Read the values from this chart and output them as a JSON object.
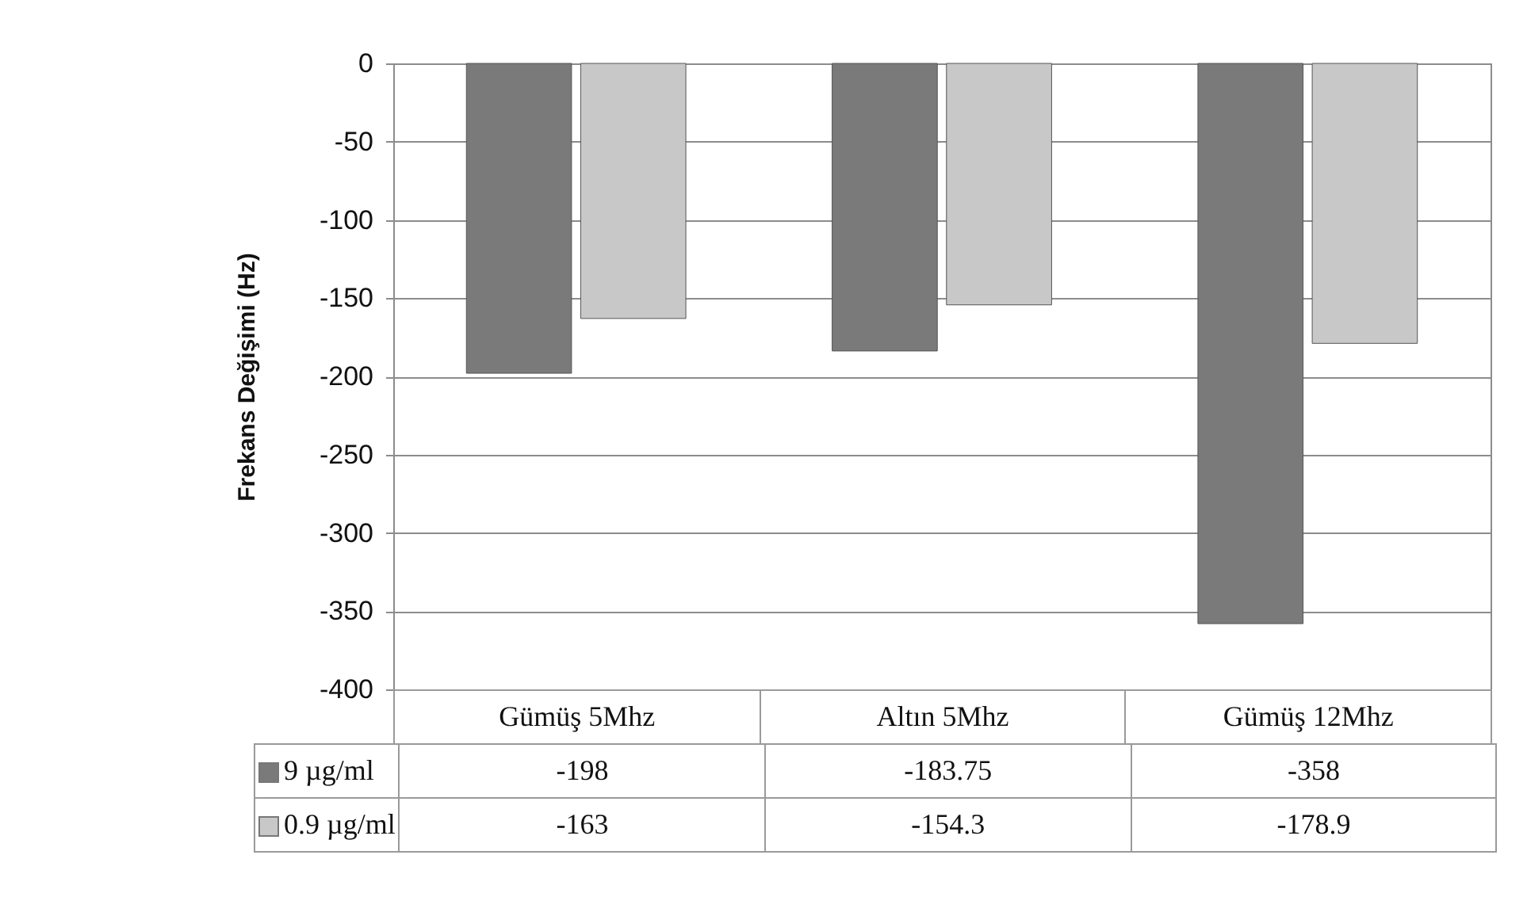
{
  "chart_data": {
    "type": "bar",
    "ylabel": "Frekans Değişimi (Hz)",
    "categories": [
      "Gümüş 5Mhz",
      "Altın 5Mhz",
      "Gümüş 12Mhz"
    ],
    "series": [
      {
        "name": "9 µg/ml",
        "color": "#7a7a7a",
        "values": [
          -198,
          -183.75,
          -358
        ]
      },
      {
        "name": "0.9 µg/ml",
        "color": "#c8c8c8",
        "values": [
          -163,
          -154.3,
          -178.9
        ]
      }
    ],
    "ylim": [
      -400,
      0
    ],
    "yticks": [
      0,
      -50,
      -100,
      -150,
      -200,
      -250,
      -300,
      -350,
      -400
    ],
    "grid": "y",
    "legend": "bottom",
    "data_labels": true
  }
}
